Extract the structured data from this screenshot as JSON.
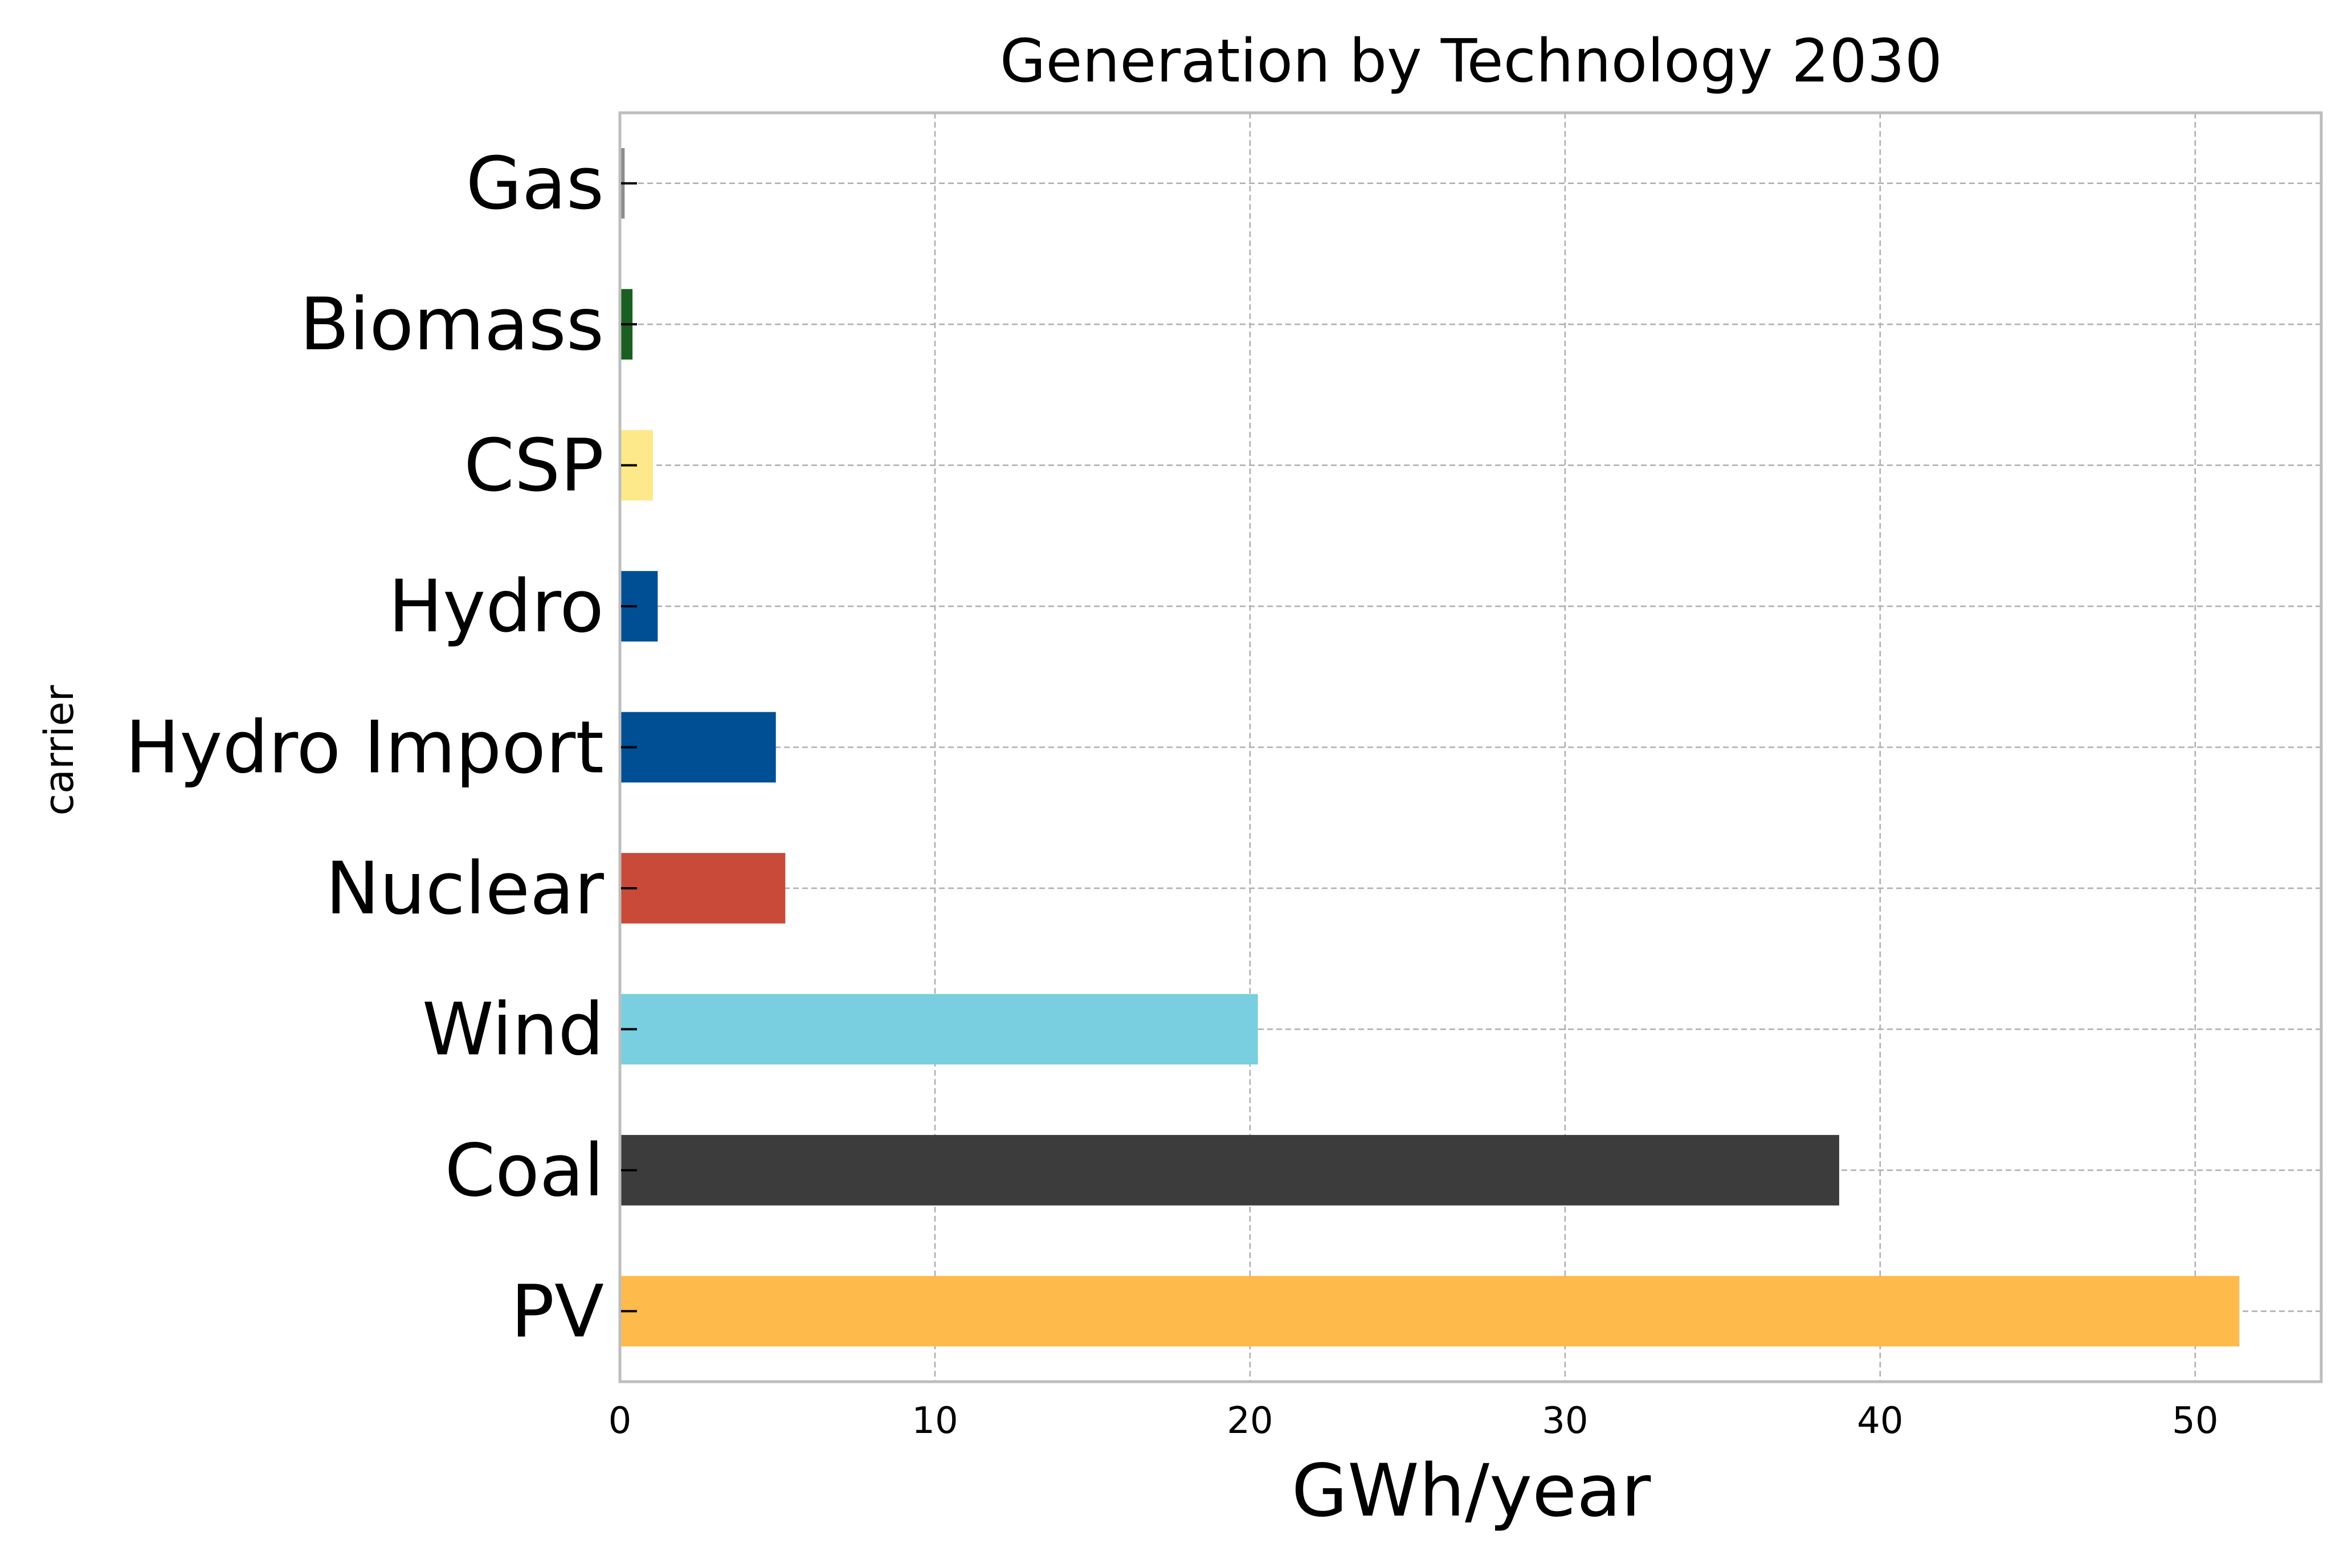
{
  "chart_data": {
    "type": "bar",
    "orientation": "horizontal",
    "title": "Generation by Technology 2030",
    "xlabel": "GWh/year",
    "ylabel": "carrier",
    "xlim": [
      0,
      54
    ],
    "xticks": [
      0,
      10,
      20,
      30,
      40,
      50
    ],
    "xtick_labels": [
      "0",
      "10",
      "20",
      "30",
      "40",
      "50"
    ],
    "grid": true,
    "categories": [
      "Gas",
      "Biomass",
      "CSP",
      "Hydro",
      "Hydro Import",
      "Nuclear",
      "Wind",
      "Coal",
      "PV"
    ],
    "values": [
      0.15,
      0.4,
      1.05,
      1.2,
      4.95,
      5.25,
      20.25,
      38.7,
      51.4
    ],
    "colors": [
      "#8c8c8c",
      "#1a5e20",
      "#fde98a",
      "#004f95",
      "#004f95",
      "#c94a38",
      "#79cfe0",
      "#3c3c3c",
      "#ffba4c"
    ]
  }
}
